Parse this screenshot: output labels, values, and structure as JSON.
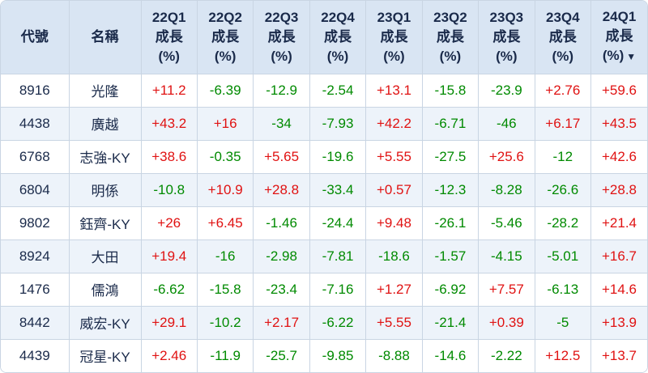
{
  "chart_data": {
    "type": "table",
    "columns": [
      {
        "id": "code",
        "lines": [
          "代號"
        ]
      },
      {
        "id": "name",
        "lines": [
          "名稱"
        ]
      },
      {
        "id": "22q1",
        "lines": [
          "22Q1",
          "成長",
          "(%)"
        ]
      },
      {
        "id": "22q2",
        "lines": [
          "22Q2",
          "成長",
          "(%)"
        ]
      },
      {
        "id": "22q3",
        "lines": [
          "22Q3",
          "成長",
          "(%)"
        ]
      },
      {
        "id": "22q4",
        "lines": [
          "22Q4",
          "成長",
          "(%)"
        ]
      },
      {
        "id": "23q1",
        "lines": [
          "23Q1",
          "成長",
          "(%)"
        ]
      },
      {
        "id": "23q2",
        "lines": [
          "23Q2",
          "成長",
          "(%)"
        ]
      },
      {
        "id": "23q3",
        "lines": [
          "23Q3",
          "成長",
          "(%)"
        ]
      },
      {
        "id": "23q4",
        "lines": [
          "23Q4",
          "成長",
          "(%)"
        ]
      },
      {
        "id": "24q1",
        "lines": [
          "24Q1",
          "成長",
          "(%)"
        ]
      }
    ],
    "sort_indicator": {
      "column_id": "24q1",
      "direction": "desc",
      "glyph": "▼"
    },
    "rows": [
      {
        "code": "8916",
        "name": "光隆",
        "values": [
          "+11.2",
          "-6.39",
          "-12.9",
          "-2.54",
          "+13.1",
          "-15.8",
          "-23.9",
          "+2.76",
          "+59.6"
        ]
      },
      {
        "code": "4438",
        "name": "廣越",
        "values": [
          "+43.2",
          "+16",
          "-34",
          "-7.93",
          "+42.2",
          "-6.71",
          "-46",
          "+6.17",
          "+43.5"
        ]
      },
      {
        "code": "6768",
        "name": "志強-KY",
        "values": [
          "+38.6",
          "-0.35",
          "+5.65",
          "-19.6",
          "+5.55",
          "-27.5",
          "+25.6",
          "-12",
          "+42.6"
        ]
      },
      {
        "code": "6804",
        "name": "明係",
        "values": [
          "-10.8",
          "+10.9",
          "+28.8",
          "-33.4",
          "+0.57",
          "-12.3",
          "-8.28",
          "-26.6",
          "+28.8"
        ]
      },
      {
        "code": "9802",
        "name": "鈺齊-KY",
        "values": [
          "+26",
          "+6.45",
          "-1.46",
          "-24.4",
          "+9.48",
          "-26.1",
          "-5.46",
          "-28.2",
          "+21.4"
        ]
      },
      {
        "code": "8924",
        "name": "大田",
        "values": [
          "+19.4",
          "-16",
          "-2.98",
          "-7.81",
          "-18.6",
          "-1.57",
          "-4.15",
          "-5.01",
          "+16.7"
        ]
      },
      {
        "code": "1476",
        "name": "儒鴻",
        "values": [
          "-6.62",
          "-15.8",
          "-23.4",
          "-7.16",
          "+1.27",
          "-6.92",
          "+7.57",
          "-6.13",
          "+14.6"
        ]
      },
      {
        "code": "8442",
        "name": "威宏-KY",
        "values": [
          "+29.1",
          "-10.2",
          "+2.17",
          "-6.22",
          "+5.55",
          "-21.4",
          "+0.39",
          "-5",
          "+13.9"
        ]
      },
      {
        "code": "4439",
        "name": "冠星-KY",
        "values": [
          "+2.46",
          "-11.9",
          "-25.7",
          "-9.85",
          "-8.88",
          "-14.6",
          "-2.22",
          "+12.5",
          "+13.7"
        ]
      }
    ]
  },
  "colors": {
    "positive": "#e01212",
    "negative": "#008a00",
    "header_bg": "#d9e5f3",
    "header_text": "#1a2a4a",
    "body_text": "#1a2a4a",
    "row_bg": "#ffffff",
    "row_alt_bg": "#edf3fa",
    "border": "#c9d5e3"
  }
}
